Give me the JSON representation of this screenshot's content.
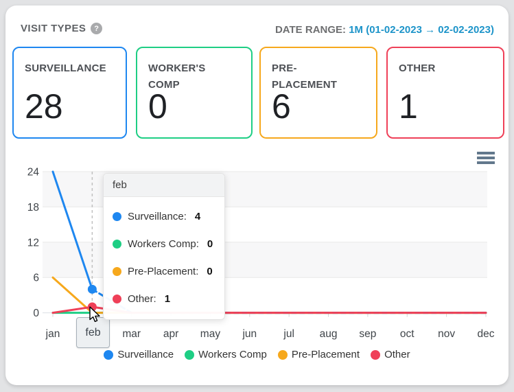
{
  "header": {
    "title": "VISIT TYPES",
    "help_glyph": "?",
    "date_range_label": "DATE RANGE:",
    "date_range_value": "1M (01-02-2023 → 02-02-2023)",
    "link_color": "#1d94c9"
  },
  "stat_cards": [
    {
      "label": "SURVEILLANCE",
      "value": "28",
      "color": "#1e87f0"
    },
    {
      "label": "WORKER'S COMP",
      "value": "0",
      "color": "#1ece84"
    },
    {
      "label": "PRE-PLACEMENT",
      "value": "6",
      "color": "#f6a81c"
    },
    {
      "label": "OTHER",
      "value": "1",
      "color": "#ef4058"
    }
  ],
  "chart_data": {
    "type": "line",
    "x": [
      "jan",
      "feb",
      "mar",
      "apr",
      "may",
      "jun",
      "jul",
      "aug",
      "sep",
      "oct",
      "nov",
      "dec"
    ],
    "series": [
      {
        "name": "Surveillance",
        "color": "#1e87f0",
        "values": [
          24,
          4,
          0,
          0,
          0,
          0,
          0,
          0,
          0,
          0,
          0,
          0
        ]
      },
      {
        "name": "Workers Comp",
        "color": "#1ece84",
        "values": [
          0,
          0,
          0,
          0,
          0,
          0,
          0,
          0,
          0,
          0,
          0,
          0
        ]
      },
      {
        "name": "Pre-Placement",
        "color": "#f6a81c",
        "values": [
          6,
          0,
          0,
          0,
          0,
          0,
          0,
          0,
          0,
          0,
          0,
          0
        ]
      },
      {
        "name": "Other",
        "color": "#ef4058",
        "values": [
          0,
          1,
          0,
          0,
          0,
          0,
          0,
          0,
          0,
          0,
          0,
          0
        ]
      }
    ],
    "ylim": [
      0,
      24
    ],
    "yticks": [
      0,
      6,
      12,
      18,
      24
    ],
    "grid": true,
    "band_fill": "#f7f7f8",
    "legend_position": "bottom",
    "hovered_category": "feb",
    "hovered_index": 1
  },
  "tooltip": {
    "title": "feb",
    "rows": [
      {
        "label": "Surveillance:",
        "value": "4",
        "color": "#1e87f0"
      },
      {
        "label": "Workers Comp:",
        "value": "0",
        "color": "#1ece84"
      },
      {
        "label": "Pre-Placement:",
        "value": "0",
        "color": "#f6a81c"
      },
      {
        "label": "Other:",
        "value": "1",
        "color": "#ef4058"
      }
    ]
  }
}
